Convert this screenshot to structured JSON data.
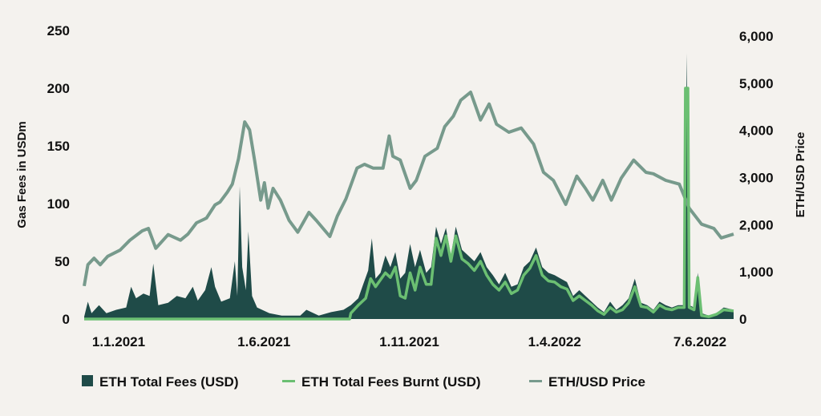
{
  "chart_data": {
    "type": "area",
    "title": "",
    "x_unit": "days since 1.1.2021",
    "xlim": [
      0,
      526
    ],
    "x_tick_labels": [
      "1.1.2021",
      "1.6.2021",
      "1.11.2021",
      "1.4.2022",
      "7.6.2022"
    ],
    "ylabel_left": "Gas Fees in USDm",
    "ylabel_right": "ETH/USD Price",
    "ylim_left": [
      0,
      250
    ],
    "ylim_right": [
      0,
      6000
    ],
    "yticks_left": [
      "0",
      "50",
      "100",
      "150",
      "200",
      "250"
    ],
    "yticks_right": [
      "0",
      "1,000",
      "2,000",
      "3,000",
      "4,000",
      "5,000",
      "6,000"
    ],
    "grid": false,
    "legend_position": "bottom",
    "series": [
      {
        "name": "ETH Total Fees (USD)",
        "type": "area",
        "axis": "left",
        "color": "#1f4b48",
        "points": [
          [
            0,
            2
          ],
          [
            3,
            15
          ],
          [
            6,
            5
          ],
          [
            12,
            12
          ],
          [
            18,
            5
          ],
          [
            26,
            8
          ],
          [
            34,
            10
          ],
          [
            38,
            28
          ],
          [
            42,
            18
          ],
          [
            48,
            22
          ],
          [
            53,
            20
          ],
          [
            56,
            48
          ],
          [
            60,
            12
          ],
          [
            68,
            14
          ],
          [
            75,
            20
          ],
          [
            82,
            18
          ],
          [
            88,
            28
          ],
          [
            92,
            16
          ],
          [
            98,
            25
          ],
          [
            103,
            45
          ],
          [
            106,
            28
          ],
          [
            111,
            15
          ],
          [
            118,
            18
          ],
          [
            122,
            50
          ],
          [
            124,
            20
          ],
          [
            126,
            115
          ],
          [
            128,
            45
          ],
          [
            131,
            25
          ],
          [
            133,
            76
          ],
          [
            136,
            20
          ],
          [
            140,
            10
          ],
          [
            150,
            5
          ],
          [
            160,
            3
          ],
          [
            175,
            3
          ],
          [
            180,
            8
          ],
          [
            190,
            3
          ],
          [
            200,
            6
          ],
          [
            210,
            8
          ],
          [
            216,
            12
          ],
          [
            222,
            18
          ],
          [
            226,
            30
          ],
          [
            230,
            42
          ],
          [
            233,
            70
          ],
          [
            236,
            35
          ],
          [
            240,
            40
          ],
          [
            244,
            55
          ],
          [
            248,
            45
          ],
          [
            252,
            58
          ],
          [
            256,
            35
          ],
          [
            260,
            40
          ],
          [
            264,
            65
          ],
          [
            268,
            45
          ],
          [
            272,
            60
          ],
          [
            277,
            40
          ],
          [
            281,
            45
          ],
          [
            285,
            80
          ],
          [
            289,
            65
          ],
          [
            293,
            79
          ],
          [
            297,
            55
          ],
          [
            301,
            80
          ],
          [
            306,
            60
          ],
          [
            311,
            55
          ],
          [
            316,
            50
          ],
          [
            321,
            58
          ],
          [
            326,
            45
          ],
          [
            331,
            38
          ],
          [
            336,
            30
          ],
          [
            341,
            40
          ],
          [
            346,
            28
          ],
          [
            351,
            30
          ],
          [
            356,
            45
          ],
          [
            361,
            50
          ],
          [
            366,
            62
          ],
          [
            371,
            45
          ],
          [
            376,
            40
          ],
          [
            381,
            38
          ],
          [
            386,
            35
          ],
          [
            391,
            32
          ],
          [
            396,
            20
          ],
          [
            401,
            25
          ],
          [
            406,
            20
          ],
          [
            411,
            15
          ],
          [
            416,
            10
          ],
          [
            421,
            6
          ],
          [
            426,
            15
          ],
          [
            431,
            8
          ],
          [
            436,
            12
          ],
          [
            441,
            18
          ],
          [
            446,
            35
          ],
          [
            451,
            14
          ],
          [
            456,
            12
          ],
          [
            461,
            8
          ],
          [
            466,
            15
          ],
          [
            471,
            12
          ],
          [
            476,
            10
          ],
          [
            481,
            12
          ],
          [
            486,
            12
          ],
          [
            488,
            230
          ],
          [
            490,
            12
          ],
          [
            494,
            10
          ],
          [
            497,
            40
          ],
          [
            500,
            5
          ],
          [
            506,
            3
          ],
          [
            512,
            5
          ],
          [
            518,
            10
          ],
          [
            526,
            8
          ]
        ]
      },
      {
        "name": "ETH Total Fees Burnt (USD)",
        "type": "line",
        "axis": "left",
        "color": "#6bbf72",
        "points": [
          [
            0,
            0
          ],
          [
            215,
            0
          ],
          [
            216,
            5
          ],
          [
            222,
            12
          ],
          [
            228,
            18
          ],
          [
            232,
            35
          ],
          [
            236,
            28
          ],
          [
            240,
            34
          ],
          [
            244,
            40
          ],
          [
            248,
            36
          ],
          [
            252,
            45
          ],
          [
            256,
            20
          ],
          [
            260,
            18
          ],
          [
            264,
            40
          ],
          [
            268,
            25
          ],
          [
            272,
            45
          ],
          [
            277,
            30
          ],
          [
            281,
            30
          ],
          [
            285,
            70
          ],
          [
            289,
            55
          ],
          [
            293,
            72
          ],
          [
            297,
            50
          ],
          [
            301,
            72
          ],
          [
            306,
            52
          ],
          [
            311,
            48
          ],
          [
            316,
            42
          ],
          [
            321,
            50
          ],
          [
            326,
            38
          ],
          [
            331,
            30
          ],
          [
            336,
            25
          ],
          [
            341,
            32
          ],
          [
            346,
            22
          ],
          [
            351,
            25
          ],
          [
            356,
            38
          ],
          [
            361,
            44
          ],
          [
            366,
            55
          ],
          [
            371,
            38
          ],
          [
            376,
            33
          ],
          [
            381,
            32
          ],
          [
            386,
            28
          ],
          [
            391,
            26
          ],
          [
            396,
            16
          ],
          [
            401,
            20
          ],
          [
            406,
            16
          ],
          [
            411,
            12
          ],
          [
            416,
            7
          ],
          [
            421,
            4
          ],
          [
            426,
            10
          ],
          [
            431,
            6
          ],
          [
            436,
            8
          ],
          [
            441,
            14
          ],
          [
            446,
            28
          ],
          [
            451,
            11
          ],
          [
            456,
            10
          ],
          [
            461,
            6
          ],
          [
            466,
            12
          ],
          [
            471,
            9
          ],
          [
            476,
            8
          ],
          [
            481,
            10
          ],
          [
            486,
            10
          ],
          [
            487,
            200
          ],
          [
            489,
            200
          ],
          [
            490,
            10
          ],
          [
            494,
            8
          ],
          [
            497,
            36
          ],
          [
            500,
            3
          ],
          [
            506,
            2
          ],
          [
            512,
            4
          ],
          [
            518,
            8
          ],
          [
            526,
            7
          ]
        ]
      },
      {
        "name": "ETH/USD Price",
        "type": "line",
        "axis": "right",
        "color": "#779a8c",
        "points": [
          [
            0,
            700
          ],
          [
            3,
            1150
          ],
          [
            8,
            1290
          ],
          [
            13,
            1150
          ],
          [
            19,
            1330
          ],
          [
            29,
            1460
          ],
          [
            37,
            1670
          ],
          [
            47,
            1870
          ],
          [
            52,
            1920
          ],
          [
            58,
            1500
          ],
          [
            68,
            1790
          ],
          [
            78,
            1670
          ],
          [
            84,
            1800
          ],
          [
            91,
            2040
          ],
          [
            99,
            2140
          ],
          [
            106,
            2420
          ],
          [
            110,
            2480
          ],
          [
            116,
            2690
          ],
          [
            120,
            2860
          ],
          [
            125,
            3400
          ],
          [
            130,
            4180
          ],
          [
            134,
            4010
          ],
          [
            138,
            3370
          ],
          [
            143,
            2520
          ],
          [
            146,
            2890
          ],
          [
            149,
            2350
          ],
          [
            153,
            2770
          ],
          [
            159,
            2520
          ],
          [
            166,
            2090
          ],
          [
            173,
            1840
          ],
          [
            182,
            2260
          ],
          [
            188,
            2090
          ],
          [
            199,
            1750
          ],
          [
            205,
            2180
          ],
          [
            212,
            2550
          ],
          [
            221,
            3200
          ],
          [
            227,
            3280
          ],
          [
            234,
            3200
          ],
          [
            242,
            3200
          ],
          [
            247,
            3880
          ],
          [
            250,
            3450
          ],
          [
            256,
            3370
          ],
          [
            264,
            2770
          ],
          [
            269,
            2940
          ],
          [
            276,
            3450
          ],
          [
            286,
            3620
          ],
          [
            292,
            4080
          ],
          [
            299,
            4300
          ],
          [
            305,
            4640
          ],
          [
            313,
            4810
          ],
          [
            321,
            4220
          ],
          [
            328,
            4560
          ],
          [
            334,
            4130
          ],
          [
            344,
            3960
          ],
          [
            354,
            4050
          ],
          [
            364,
            3710
          ],
          [
            372,
            3110
          ],
          [
            380,
            2940
          ],
          [
            390,
            2430
          ],
          [
            399,
            3030
          ],
          [
            406,
            2770
          ],
          [
            412,
            2520
          ],
          [
            420,
            2940
          ],
          [
            427,
            2520
          ],
          [
            435,
            2990
          ],
          [
            445,
            3370
          ],
          [
            455,
            3110
          ],
          [
            461,
            3080
          ],
          [
            471,
            2940
          ],
          [
            482,
            2860
          ],
          [
            490,
            2350
          ],
          [
            500,
            2010
          ],
          [
            510,
            1920
          ],
          [
            516,
            1720
          ],
          [
            526,
            1800
          ]
        ]
      }
    ]
  }
}
